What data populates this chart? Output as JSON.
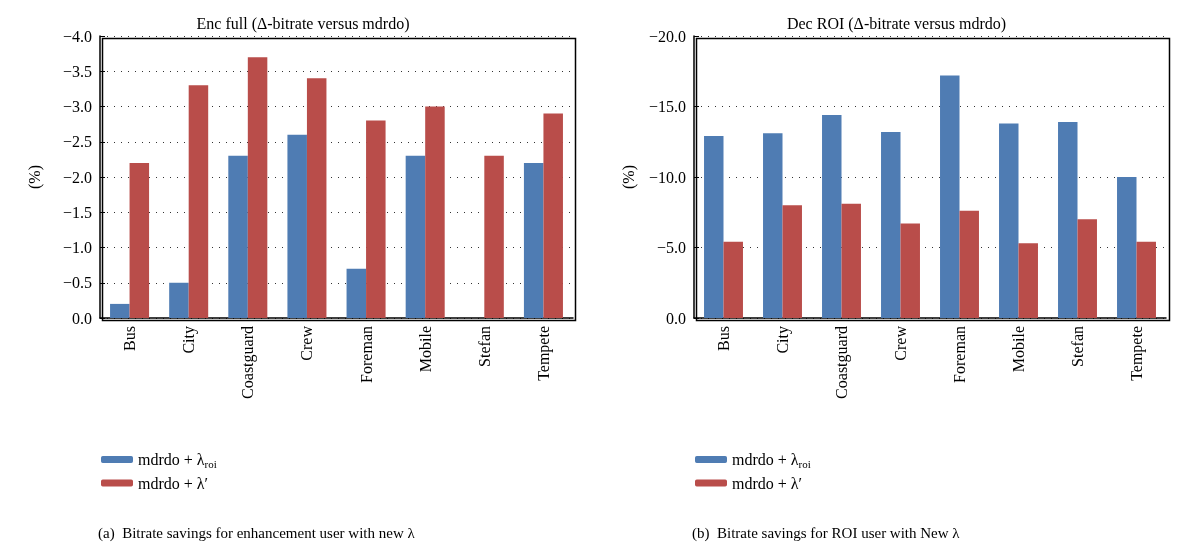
{
  "chart_data": [
    {
      "type": "bar",
      "title": "Enc full (Δ-bitrate versus mdrdo)",
      "ylabel": "(%)",
      "categories": [
        "Bus",
        "City",
        "Coastguard",
        "Crew",
        "Foreman",
        "Mobile",
        "Stefan",
        "Tempete"
      ],
      "series": [
        {
          "name": "mdrdo + λ$_{roi}$",
          "color": "#4f7cb3",
          "values": [
            -0.2,
            -0.5,
            -2.3,
            -2.6,
            -0.7,
            -2.3,
            0,
            -2.2
          ]
        },
        {
          "name": "mdrdo + λ′",
          "color": "#b94d4a",
          "values": [
            -2.2,
            -3.3,
            -3.7,
            -3.4,
            -2.8,
            -3.0,
            -2.3,
            -2.9
          ]
        }
      ],
      "ylim": [
        0,
        -4
      ],
      "yticks": [
        {
          "value": 0,
          "label": "0.0"
        },
        {
          "value": -0.5,
          "label": "−0.5"
        },
        {
          "value": -1,
          "label": "−1.0"
        },
        {
          "value": -1.5,
          "label": "−1.5"
        },
        {
          "value": -2,
          "label": "−2.0"
        },
        {
          "value": -2.5,
          "label": "−2.5"
        },
        {
          "value": -3,
          "label": "−3.0"
        },
        {
          "value": -3.5,
          "label": "−3.5"
        },
        {
          "value": -4,
          "label": "−4.0"
        }
      ],
      "grid": "y",
      "legend": "bottom left",
      "annotations": [
        "(a)  Bitrate savings for enhancement user with new λ"
      ]
    },
    {
      "type": "bar",
      "title": "Dec ROI (Δ-bitrate versus mdrdo)",
      "ylabel": "(%)",
      "categories": [
        "Bus",
        "City",
        "Coastguard",
        "Crew",
        "Foreman",
        "Mobile",
        "Stefan",
        "Tempete"
      ],
      "series": [
        {
          "name": "mdrdo + λ$_{roi}$",
          "color": "#4f7cb3",
          "values": [
            -12.9,
            -13.1,
            -14.4,
            -13.2,
            -17.2,
            -13.8,
            -13.9,
            -10.0
          ]
        },
        {
          "name": "mdrdo + λ′",
          "color": "#b94d4a",
          "values": [
            -5.4,
            -8.0,
            -8.1,
            -6.7,
            -7.6,
            -5.3,
            -7.0,
            -5.4
          ]
        }
      ],
      "ylim": [
        0,
        -20
      ],
      "yticks": [
        {
          "value": 0,
          "label": "0.0"
        },
        {
          "value": -5,
          "label": "−5.0"
        },
        {
          "value": -10,
          "label": "−10.0"
        },
        {
          "value": -15,
          "label": "−15.0"
        },
        {
          "value": -20,
          "label": "−20.0"
        }
      ],
      "grid": "y",
      "legend": "bottom left",
      "annotations": [
        "(b)  Bitrate savings for ROI user with New λ"
      ]
    }
  ]
}
